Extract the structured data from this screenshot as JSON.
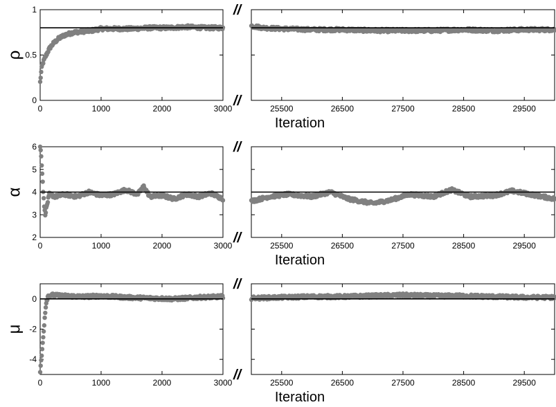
{
  "figure": {
    "break_symbol": "//",
    "dot_color": "#808080",
    "line_color": "#000000",
    "xlabel": "Iteration"
  },
  "chart_data": [
    {
      "type": "scatter",
      "ylabel": "ρ",
      "xlabel": "Iteration",
      "ylim": [
        0,
        1
      ],
      "yticks": [
        0,
        0.5,
        1
      ],
      "ytick_labels": [
        "0",
        "0.5",
        "1"
      ],
      "true_value": 0.8,
      "segments": [
        {
          "xlim": [
            0,
            3000
          ],
          "xticks": [
            0,
            1000,
            2000,
            3000
          ],
          "xtick_labels": [
            "0",
            "1000",
            "2000",
            "3000"
          ],
          "trace": [
            [
              0,
              0.2
            ],
            [
              15,
              0.3
            ],
            [
              30,
              0.38
            ],
            [
              50,
              0.42
            ],
            [
              80,
              0.47
            ],
            [
              120,
              0.53
            ],
            [
              160,
              0.58
            ],
            [
              220,
              0.63
            ],
            [
              300,
              0.68
            ],
            [
              400,
              0.72
            ],
            [
              550,
              0.75
            ],
            [
              700,
              0.76
            ],
            [
              850,
              0.77
            ],
            [
              1000,
              0.79
            ],
            [
              1200,
              0.79
            ],
            [
              1500,
              0.79
            ],
            [
              1800,
              0.8
            ],
            [
              2100,
              0.8
            ],
            [
              2400,
              0.81
            ],
            [
              2700,
              0.8
            ],
            [
              3000,
              0.8
            ]
          ]
        },
        {
          "xlim": [
            25000,
            30000
          ],
          "xticks": [
            25500,
            26500,
            27500,
            28500,
            29500
          ],
          "xtick_labels": [
            "25500",
            "26500",
            "27500",
            "28500",
            "29500"
          ],
          "trace": [
            [
              25000,
              0.82
            ],
            [
              25200,
              0.8
            ],
            [
              25500,
              0.79
            ],
            [
              26000,
              0.78
            ],
            [
              26500,
              0.78
            ],
            [
              27000,
              0.77
            ],
            [
              27500,
              0.77
            ],
            [
              28000,
              0.77
            ],
            [
              28500,
              0.78
            ],
            [
              29000,
              0.77
            ],
            [
              29500,
              0.78
            ],
            [
              30000,
              0.78
            ]
          ]
        }
      ]
    },
    {
      "type": "scatter",
      "ylabel": "α",
      "xlabel": "Iteration",
      "ylim": [
        2,
        6
      ],
      "yticks": [
        2,
        3,
        4,
        5,
        6
      ],
      "ytick_labels": [
        "2",
        "3",
        "4",
        "5",
        "6"
      ],
      "true_value": 4,
      "segments": [
        {
          "xlim": [
            0,
            3000
          ],
          "xticks": [
            0,
            1000,
            2000,
            3000
          ],
          "xtick_labels": [
            "0",
            "1000",
            "2000",
            "3000"
          ],
          "trace": [
            [
              0,
              6.0
            ],
            [
              15,
              5.7
            ],
            [
              30,
              5.0
            ],
            [
              45,
              4.3
            ],
            [
              60,
              3.6
            ],
            [
              80,
              3.0
            ],
            [
              110,
              3.4
            ],
            [
              150,
              3.9
            ],
            [
              250,
              3.8
            ],
            [
              400,
              3.9
            ],
            [
              600,
              3.8
            ],
            [
              800,
              4.0
            ],
            [
              1000,
              3.85
            ],
            [
              1200,
              3.9
            ],
            [
              1400,
              4.1
            ],
            [
              1600,
              3.9
            ],
            [
              1700,
              4.25
            ],
            [
              1800,
              3.8
            ],
            [
              2000,
              3.85
            ],
            [
              2200,
              3.7
            ],
            [
              2400,
              3.9
            ],
            [
              2600,
              3.8
            ],
            [
              2800,
              3.95
            ],
            [
              3000,
              3.7
            ]
          ]
        },
        {
          "xlim": [
            25000,
            30000
          ],
          "xticks": [
            25500,
            26500,
            27500,
            28500,
            29500
          ],
          "xtick_labels": [
            "25500",
            "26500",
            "27500",
            "28500",
            "29500"
          ],
          "trace": [
            [
              25000,
              3.6
            ],
            [
              25300,
              3.8
            ],
            [
              25600,
              3.9
            ],
            [
              26000,
              3.8
            ],
            [
              26300,
              4.0
            ],
            [
              26600,
              3.7
            ],
            [
              27000,
              3.5
            ],
            [
              27300,
              3.65
            ],
            [
              27600,
              3.9
            ],
            [
              28000,
              3.8
            ],
            [
              28300,
              4.1
            ],
            [
              28600,
              3.8
            ],
            [
              29000,
              3.85
            ],
            [
              29300,
              4.05
            ],
            [
              29600,
              3.9
            ],
            [
              30000,
              3.7
            ]
          ]
        }
      ]
    },
    {
      "type": "scatter",
      "ylabel": "μ",
      "xlabel": "Iteration",
      "ylim": [
        -5,
        1
      ],
      "yticks": [
        -4,
        -2,
        0
      ],
      "ytick_labels": [
        "-4",
        "-2",
        "0"
      ],
      "true_value": 0,
      "segments": [
        {
          "xlim": [
            0,
            3000
          ],
          "xticks": [
            0,
            1000,
            2000,
            3000
          ],
          "xtick_labels": [
            "0",
            "1000",
            "2000",
            "3000"
          ],
          "trace": [
            [
              0,
              -4.8
            ],
            [
              20,
              -4.0
            ],
            [
              40,
              -3.0
            ],
            [
              60,
              -2.0
            ],
            [
              80,
              -1.0
            ],
            [
              100,
              -0.2
            ],
            [
              130,
              0.2
            ],
            [
              200,
              0.25
            ],
            [
              400,
              0.2
            ],
            [
              700,
              0.15
            ],
            [
              1000,
              0.2
            ],
            [
              1400,
              0.1
            ],
            [
              1800,
              0.05
            ],
            [
              2200,
              0.0
            ],
            [
              2600,
              0.1
            ],
            [
              3000,
              0.15
            ]
          ]
        },
        {
          "xlim": [
            25000,
            30000
          ],
          "xticks": [
            25500,
            26500,
            27500,
            28500,
            29500
          ],
          "xtick_labels": [
            "25500",
            "26500",
            "27500",
            "28500",
            "29500"
          ],
          "trace": [
            [
              25000,
              0.05
            ],
            [
              25500,
              0.1
            ],
            [
              26000,
              0.15
            ],
            [
              26500,
              0.15
            ],
            [
              27000,
              0.2
            ],
            [
              27500,
              0.25
            ],
            [
              28000,
              0.2
            ],
            [
              28500,
              0.2
            ],
            [
              29000,
              0.15
            ],
            [
              29500,
              0.1
            ],
            [
              30000,
              0.1
            ]
          ]
        }
      ]
    }
  ]
}
